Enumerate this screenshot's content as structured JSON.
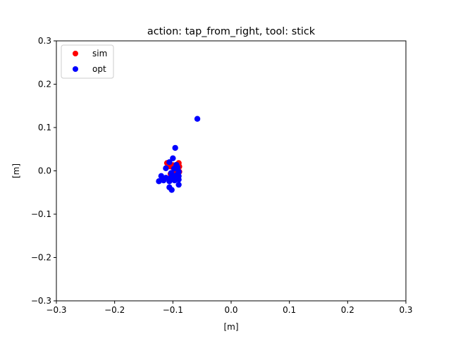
{
  "chart_data": {
    "type": "scatter",
    "title": "action: tap_from_right, tool: stick",
    "xlabel": "[m]",
    "ylabel": "[m]",
    "xlim": [
      -0.3,
      0.3
    ],
    "ylim": [
      -0.3,
      0.3
    ],
    "xticks": [
      -0.3,
      -0.2,
      -0.1,
      0.0,
      0.1,
      0.2,
      0.3
    ],
    "yticks": [
      -0.3,
      -0.2,
      -0.1,
      0.0,
      0.1,
      0.2,
      0.3
    ],
    "xtick_labels": [
      "−0.3",
      "−0.2",
      "−0.1",
      "0.0",
      "0.1",
      "0.2",
      "0.3"
    ],
    "ytick_labels": [
      "−0.3",
      "−0.2",
      "−0.1",
      "0.0",
      "0.1",
      "0.2",
      "0.3"
    ],
    "grid": false,
    "legend_position": "upper-left",
    "series": [
      {
        "name": "sim",
        "color": "#ff0000",
        "points": [
          [
            -0.11,
            0.018
          ],
          [
            -0.104,
            0.01
          ],
          [
            -0.1,
            0.013
          ],
          [
            -0.097,
            0.006
          ],
          [
            -0.095,
            0.0
          ],
          [
            -0.092,
            0.01
          ],
          [
            -0.09,
            0.018
          ],
          [
            -0.089,
            0.01
          ],
          [
            -0.089,
            -0.002
          ],
          [
            -0.094,
            -0.006
          ],
          [
            -0.098,
            -0.008
          ],
          [
            -0.104,
            -0.007
          ]
        ]
      },
      {
        "name": "opt",
        "color": "#0000ff",
        "points": [
          [
            -0.058,
            0.12
          ],
          [
            -0.096,
            0.053
          ],
          [
            -0.1,
            0.029
          ],
          [
            -0.106,
            0.02
          ],
          [
            -0.094,
            0.014
          ],
          [
            -0.112,
            0.006
          ],
          [
            -0.098,
            0.005
          ],
          [
            -0.092,
            0.008
          ],
          [
            -0.09,
            -0.002
          ],
          [
            -0.09,
            -0.012
          ],
          [
            -0.09,
            -0.02
          ],
          [
            -0.09,
            -0.032
          ],
          [
            -0.094,
            -0.01
          ],
          [
            -0.098,
            -0.014
          ],
          [
            -0.1,
            -0.02
          ],
          [
            -0.104,
            -0.016
          ],
          [
            -0.106,
            -0.024
          ],
          [
            -0.112,
            -0.016
          ],
          [
            -0.116,
            -0.022
          ],
          [
            -0.12,
            -0.012
          ],
          [
            -0.124,
            -0.024
          ],
          [
            -0.106,
            -0.038
          ],
          [
            -0.102,
            -0.044
          ],
          [
            -0.097,
            -0.022
          ],
          [
            -0.103,
            -0.005
          ]
        ]
      }
    ]
  }
}
